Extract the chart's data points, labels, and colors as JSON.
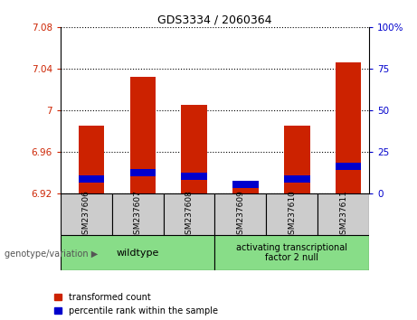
{
  "title": "GDS3334 / 2060364",
  "samples": [
    "GSM237606",
    "GSM237607",
    "GSM237608",
    "GSM237609",
    "GSM237610",
    "GSM237611"
  ],
  "red_values": [
    6.985,
    7.032,
    7.005,
    6.932,
    6.985,
    7.046
  ],
  "blue_values": [
    6.934,
    6.94,
    6.937,
    6.929,
    6.934,
    6.946
  ],
  "blue_bar_height": 0.007,
  "ylim_left": [
    6.92,
    7.08
  ],
  "ylim_right": [
    0,
    100
  ],
  "yticks_left": [
    6.92,
    6.96,
    7.0,
    7.04,
    7.08
  ],
  "yticks_right": [
    0,
    25,
    50,
    75,
    100
  ],
  "ytick_labels_left": [
    "6.92",
    "6.96",
    "7",
    "7.04",
    "7.08"
  ],
  "ytick_labels_right": [
    "0",
    "25",
    "50",
    "75",
    "100%"
  ],
  "red_color": "#cc2200",
  "blue_color": "#0000cc",
  "bar_bottom": 6.92,
  "group1_label": "wildtype",
  "group2_label": "activating transcriptional\nfactor 2 null",
  "group1_indices": [
    0,
    1,
    2
  ],
  "group2_indices": [
    3,
    4,
    5
  ],
  "legend_red": "transformed count",
  "legend_blue": "percentile rank within the sample",
  "xlabel_left": "genotype/variation",
  "group_bg_color": "#88dd88",
  "sample_bg_color": "#cccccc",
  "bar_width": 0.5,
  "xlim": [
    -0.6,
    5.4
  ]
}
